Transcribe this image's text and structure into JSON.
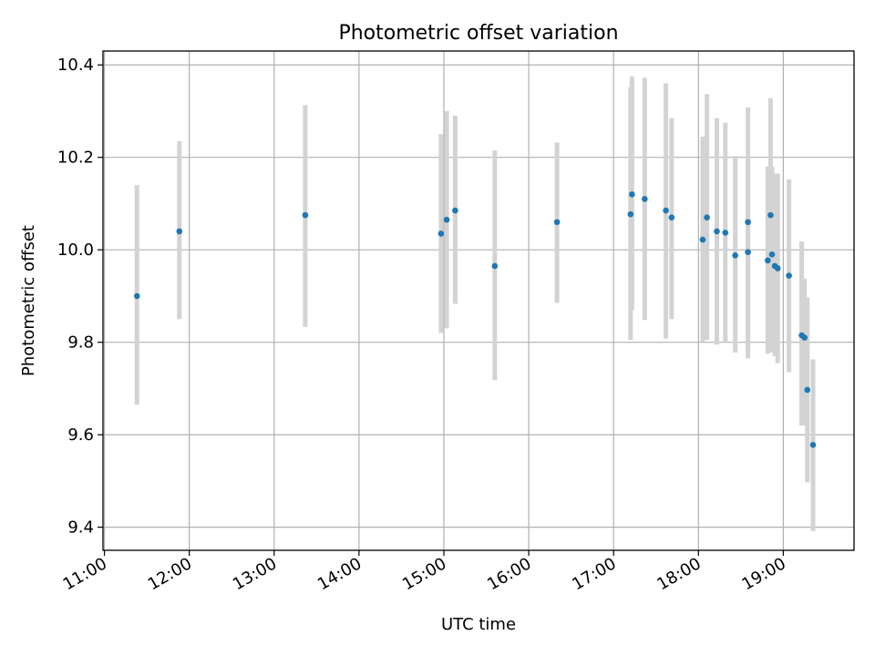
{
  "chart_data": {
    "type": "scatter",
    "title": "Photometric offset variation",
    "xlabel": "UTC time",
    "ylabel": "Photometric offset",
    "x_format": "HH:MM",
    "xlim": [
      "10:59",
      "19:50"
    ],
    "ylim": [
      9.35,
      10.43
    ],
    "x_ticks": [
      "11:00",
      "12:00",
      "13:00",
      "14:00",
      "15:00",
      "16:00",
      "17:00",
      "18:00",
      "19:00"
    ],
    "y_ticks": [
      "9.4",
      "9.6",
      "9.8",
      "10.0",
      "10.2",
      "10.4"
    ],
    "grid": true,
    "colors": {
      "point": "#1f77b4",
      "errorbar": "#d3d3d3",
      "grid": "#b0b0b0"
    },
    "series": [
      {
        "points": [
          {
            "x": "11:23",
            "y": 9.9,
            "ylo": 9.665,
            "yhi": 10.14
          },
          {
            "x": "11:53",
            "y": 10.04,
            "ylo": 9.85,
            "yhi": 10.235
          },
          {
            "x": "13:22",
            "y": 10.075,
            "ylo": 9.833,
            "yhi": 10.313
          },
          {
            "x": "14:58",
            "y": 10.035,
            "ylo": 9.82,
            "yhi": 10.25
          },
          {
            "x": "15:02",
            "y": 10.065,
            "ylo": 9.83,
            "yhi": 10.3
          },
          {
            "x": "15:08",
            "y": 10.085,
            "ylo": 9.883,
            "yhi": 10.29
          },
          {
            "x": "15:36",
            "y": 9.965,
            "ylo": 9.718,
            "yhi": 10.215
          },
          {
            "x": "16:20",
            "y": 10.06,
            "ylo": 9.885,
            "yhi": 10.232
          },
          {
            "x": "17:12",
            "y": 10.077,
            "ylo": 9.805,
            "yhi": 10.352
          },
          {
            "x": "17:13",
            "y": 10.12,
            "ylo": 9.87,
            "yhi": 10.375
          },
          {
            "x": "17:22",
            "y": 10.11,
            "ylo": 9.848,
            "yhi": 10.372
          },
          {
            "x": "17:37",
            "y": 10.085,
            "ylo": 9.808,
            "yhi": 10.36
          },
          {
            "x": "17:41",
            "y": 10.07,
            "ylo": 9.85,
            "yhi": 10.285
          },
          {
            "x": "18:03",
            "y": 10.022,
            "ylo": 9.8,
            "yhi": 10.245
          },
          {
            "x": "18:06",
            "y": 10.07,
            "ylo": 9.805,
            "yhi": 10.337
          },
          {
            "x": "18:13",
            "y": 10.04,
            "ylo": 9.795,
            "yhi": 10.285
          },
          {
            "x": "18:19",
            "y": 10.037,
            "ylo": 9.8,
            "yhi": 10.275
          },
          {
            "x": "18:26",
            "y": 9.988,
            "ylo": 9.778,
            "yhi": 10.203
          },
          {
            "x": "18:35",
            "y": 10.06,
            "ylo": 9.765,
            "yhi": 10.308
          },
          {
            "x": "18:35",
            "y": 9.995,
            "ylo": 9.778,
            "yhi": 10.2
          },
          {
            "x": "18:49",
            "y": 9.977,
            "ylo": 9.775,
            "yhi": 10.18
          },
          {
            "x": "18:51",
            "y": 10.075,
            "ylo": 9.778,
            "yhi": 10.328
          },
          {
            "x": "18:52",
            "y": 9.99,
            "ylo": 9.79,
            "yhi": 10.18
          },
          {
            "x": "18:54",
            "y": 9.965,
            "ylo": 9.77,
            "yhi": 10.165
          },
          {
            "x": "18:56",
            "y": 9.96,
            "ylo": 9.755,
            "yhi": 10.165
          },
          {
            "x": "19:04",
            "y": 9.944,
            "ylo": 9.735,
            "yhi": 10.152
          },
          {
            "x": "19:13",
            "y": 9.815,
            "ylo": 9.62,
            "yhi": 10.018
          },
          {
            "x": "19:15",
            "y": 9.81,
            "ylo": 9.62,
            "yhi": 9.938
          },
          {
            "x": "19:17",
            "y": 9.697,
            "ylo": 9.497,
            "yhi": 9.897
          },
          {
            "x": "19:21",
            "y": 9.578,
            "ylo": 9.392,
            "yhi": 9.763
          }
        ]
      }
    ]
  }
}
